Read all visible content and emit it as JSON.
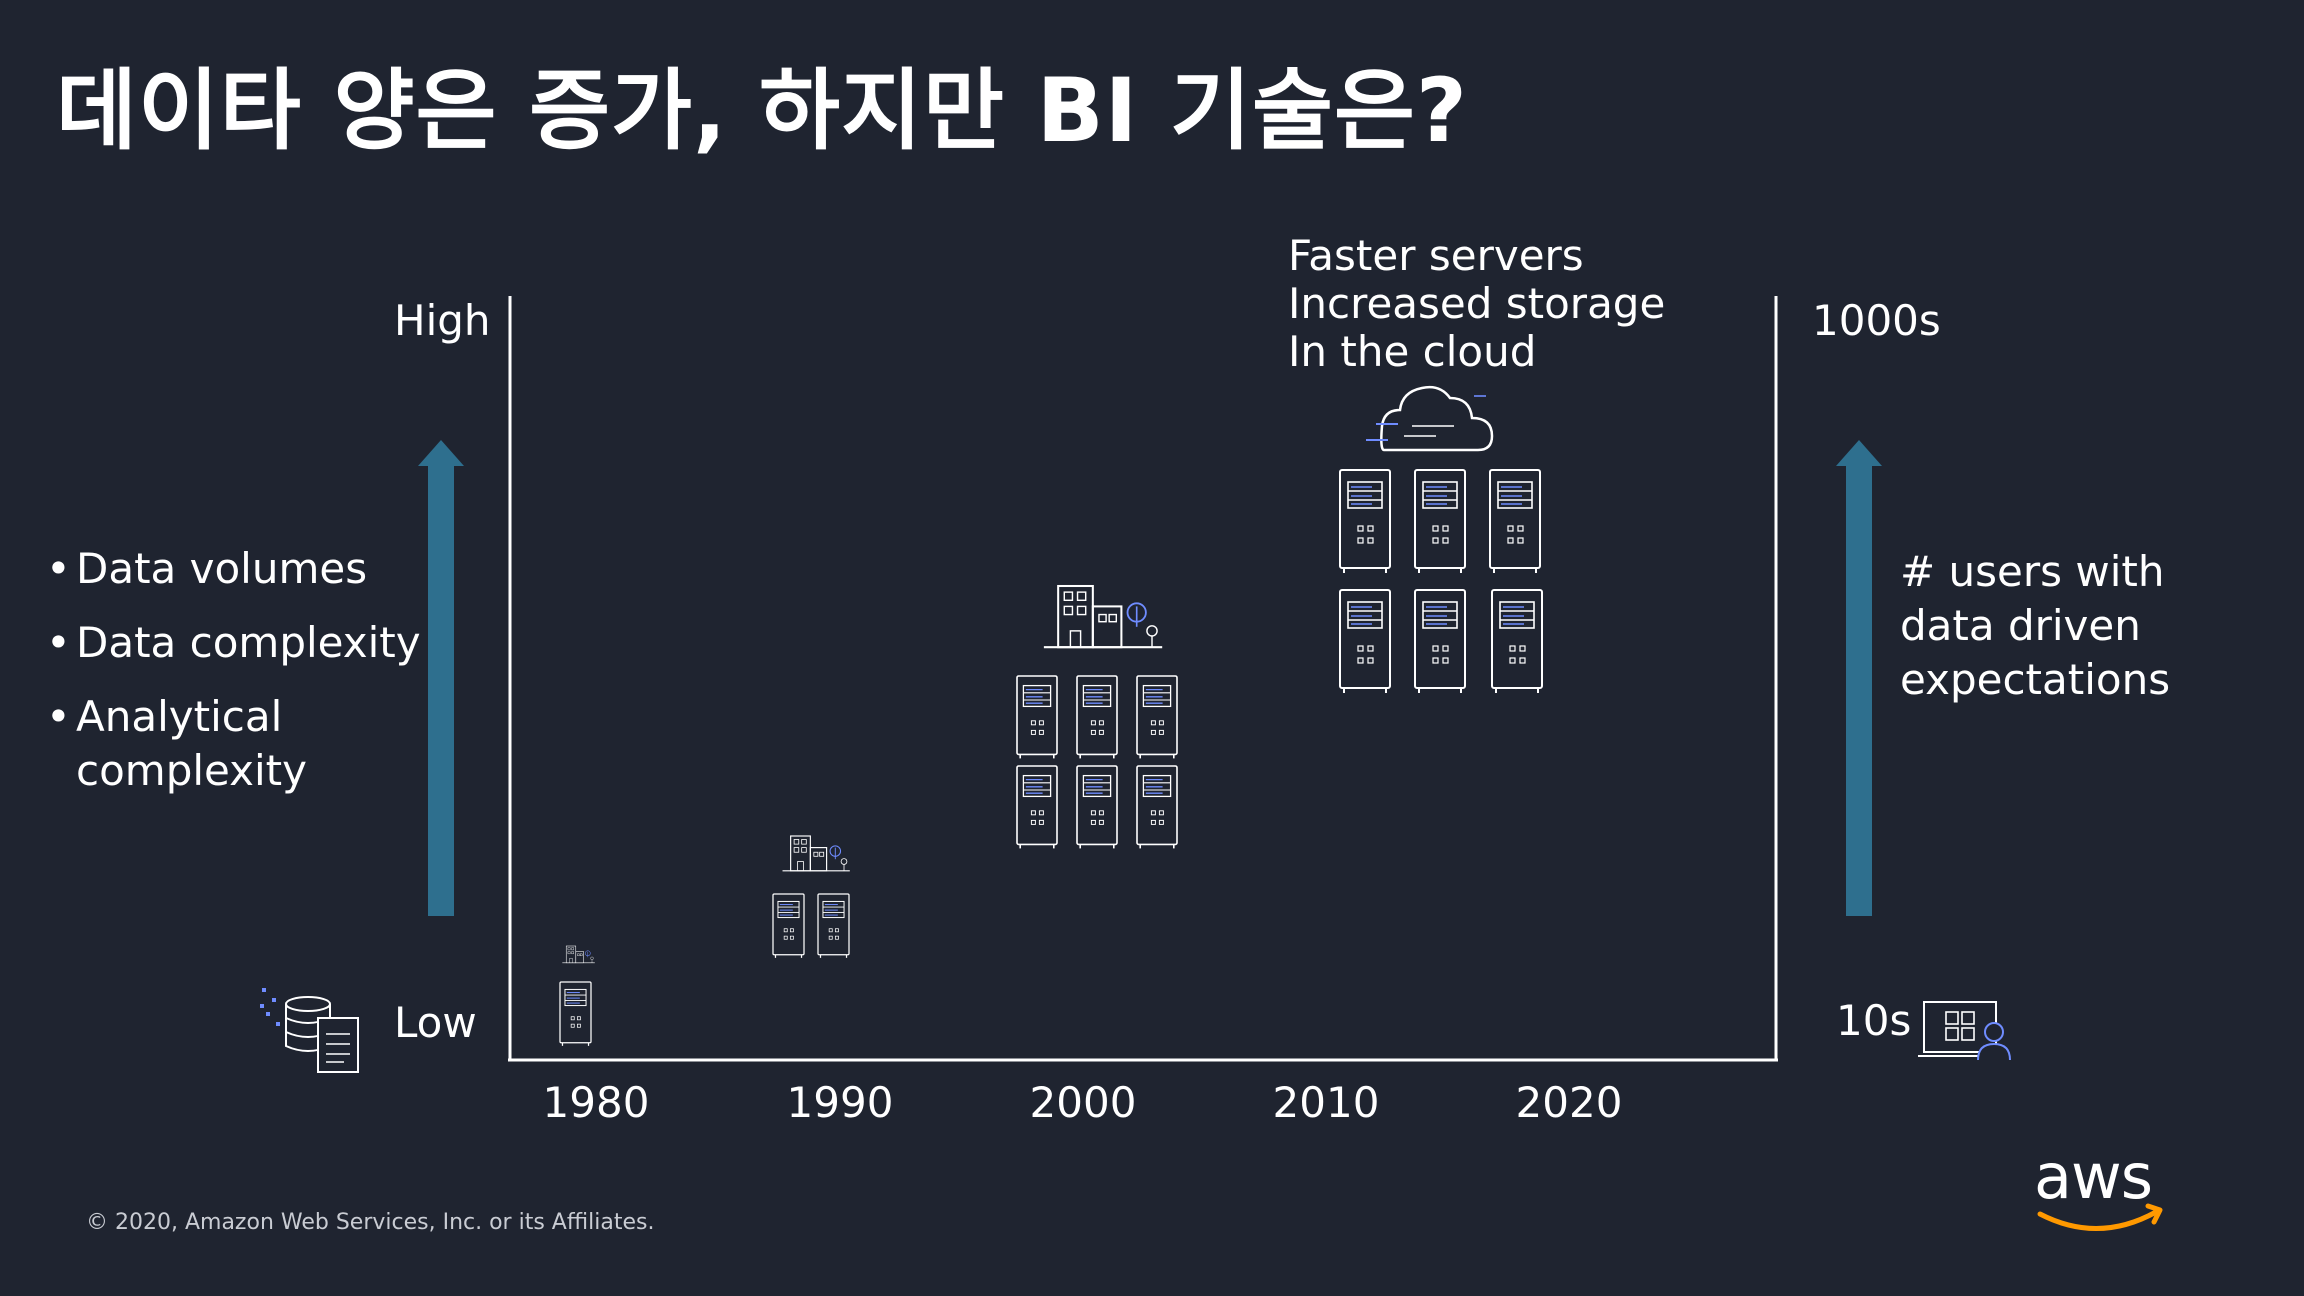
{
  "title": "데이타 양은 증가, 하지만 BI 기술은?",
  "left_axis": {
    "high": "High",
    "low": "Low"
  },
  "bullets": [
    "Data volumes",
    "Data complexity",
    "Analytical",
    "complexity"
  ],
  "cloud_notes": [
    "Faster servers",
    "Increased storage",
    "In the cloud"
  ],
  "years": [
    "1980",
    "1990",
    "2000",
    "2010",
    "2020"
  ],
  "right_axis": {
    "top": "1000s",
    "bottom": "10s",
    "text": [
      "# users with",
      "data driven",
      "expectations"
    ]
  },
  "footer": "© 2020, Amazon Web Services, Inc. or its Affiliates.",
  "brand": {
    "name": "aws",
    "accent": "#ff9900"
  },
  "colors": {
    "background": "#1f2430",
    "arrow": "#2e6f8e",
    "axis": "#ffffff",
    "icon_accent": "#6f8cff"
  },
  "icons": [
    "database-docs-icon",
    "server-icon",
    "building-icon",
    "cloud-icon",
    "dashboard-user-icon"
  ]
}
